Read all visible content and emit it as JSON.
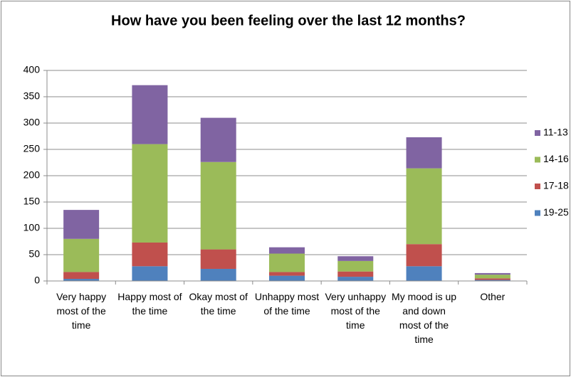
{
  "chart_data": {
    "type": "stacked_bar",
    "title": "How have you been feeling over the last 12 months?",
    "categories": [
      "Very happy most of the time",
      "Happy most of the time",
      "Okay most of the time",
      "Unhappy most of the time",
      "Very unhappy most of the time",
      "My mood is up and down most of the time",
      "Other"
    ],
    "series": [
      {
        "name": "19-25",
        "color": "#4f81bd",
        "values": [
          4,
          28,
          23,
          10,
          8,
          28,
          2
        ]
      },
      {
        "name": "17-18",
        "color": "#c0504d",
        "values": [
          13,
          45,
          37,
          7,
          10,
          42,
          3
        ]
      },
      {
        "name": "14-16",
        "color": "#9bbb59",
        "values": [
          63,
          187,
          166,
          35,
          20,
          144,
          7
        ]
      },
      {
        "name": "11-13",
        "color": "#8064a2",
        "values": [
          55,
          112,
          84,
          12,
          9,
          59,
          3
        ]
      }
    ],
    "ylim": [
      0,
      400
    ],
    "yticks": [
      0,
      50,
      100,
      150,
      200,
      250,
      300,
      350,
      400
    ],
    "grid": true,
    "legend": "right"
  }
}
